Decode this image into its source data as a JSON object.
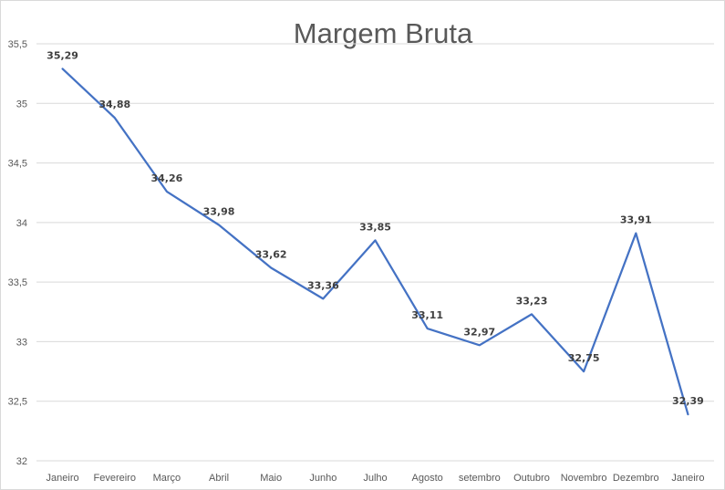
{
  "chart_data": {
    "type": "line",
    "title": "Margem Bruta",
    "xlabel": "",
    "ylabel": "",
    "categories": [
      "Janeiro",
      "Fevereiro",
      "Março",
      "Abril",
      "Maio",
      "Junho",
      "Julho",
      "Agosto",
      "setembro",
      "Outubro",
      "Novembro",
      "Dezembro",
      "Janeiro"
    ],
    "series": [
      {
        "values": [
          35.29,
          34.88,
          34.26,
          33.98,
          33.62,
          33.36,
          33.85,
          33.11,
          32.97,
          33.23,
          32.75,
          33.91,
          32.39
        ],
        "labels": [
          "35,29",
          "34,88",
          "34,26",
          "33,98",
          "33,62",
          "33,36",
          "33,85",
          "33,11",
          "32,97",
          "33,23",
          "32,75",
          "33,91",
          "32,39"
        ]
      }
    ],
    "ylim": [
      32,
      35.5
    ],
    "yticks": [
      "32",
      "32,5",
      "33",
      "33,5",
      "34",
      "34,5",
      "35",
      "35,5"
    ],
    "grid": true,
    "legend": "none",
    "line_color": "#4472c4"
  }
}
